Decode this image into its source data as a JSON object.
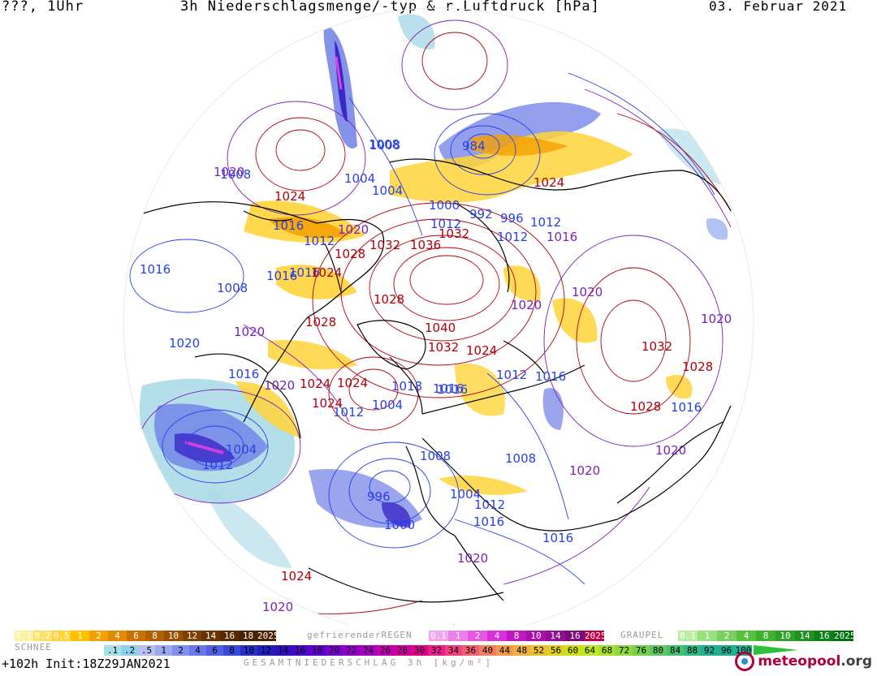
{
  "header": {
    "left": "???, 1Uhr",
    "title": "3h Niederschlagsmenge/-typ & r.Luftdruck [hPa]",
    "date": "03. Februar 2021"
  },
  "map": {
    "colors": {
      "high_isobar": "#b0000c",
      "low_isobar": "#2840e6",
      "mid_isobar": "#7a20b8",
      "coast": "#000000",
      "rain_light": "#a8d8e8",
      "rain_moderate": "#6f7fe6",
      "rain_heavy": "#3a28c8",
      "rain_extreme": "#e040e0",
      "snow_light": "#ffd43a",
      "snow_moderate": "#f5a000"
    },
    "isobar_labels": [
      {
        "text": "1016",
        "kind": "low"
      },
      {
        "text": "1020",
        "kind": "low"
      },
      {
        "text": "1024",
        "kind": "high"
      },
      {
        "text": "1028",
        "kind": "high"
      },
      {
        "text": "1008",
        "kind": "low"
      },
      {
        "text": "984",
        "kind": "low"
      },
      {
        "text": "1020",
        "kind": "mid"
      },
      {
        "text": "1008",
        "kind": "low"
      },
      {
        "text": "1004",
        "kind": "low"
      },
      {
        "text": "1004",
        "kind": "low"
      },
      {
        "text": "1024",
        "kind": "high"
      },
      {
        "text": "1000",
        "kind": "low"
      },
      {
        "text": "1012",
        "kind": "low"
      },
      {
        "text": "992",
        "kind": "low"
      },
      {
        "text": "996",
        "kind": "low"
      },
      {
        "text": "1012",
        "kind": "low"
      },
      {
        "text": "1016",
        "kind": "mid"
      },
      {
        "text": "1016",
        "kind": "low"
      },
      {
        "text": "1012",
        "kind": "low"
      },
      {
        "text": "1020",
        "kind": "mid"
      },
      {
        "text": "1032",
        "kind": "high"
      },
      {
        "text": "1036",
        "kind": "high"
      },
      {
        "text": "1008",
        "kind": "low"
      },
      {
        "text": "1016",
        "kind": "low"
      },
      {
        "text": "1012",
        "kind": "low"
      },
      {
        "text": "1028",
        "kind": "high"
      },
      {
        "text": "1016",
        "kind": "low"
      },
      {
        "text": "1024",
        "kind": "high"
      },
      {
        "text": "1016",
        "kind": "low"
      },
      {
        "text": "1008",
        "kind": "low"
      },
      {
        "text": "1020",
        "kind": "mid"
      },
      {
        "text": "1032",
        "kind": "high"
      },
      {
        "text": "1028",
        "kind": "high"
      },
      {
        "text": "1020",
        "kind": "mid"
      },
      {
        "text": "1020",
        "kind": "mid"
      },
      {
        "text": "1040",
        "kind": "high"
      },
      {
        "text": "1032",
        "kind": "high"
      },
      {
        "text": "1024",
        "kind": "high"
      },
      {
        "text": "1032",
        "kind": "high"
      },
      {
        "text": "1020",
        "kind": "mid"
      },
      {
        "text": "1016",
        "kind": "low"
      },
      {
        "text": "1012",
        "kind": "low"
      },
      {
        "text": "1016",
        "kind": "low"
      },
      {
        "text": "1020",
        "kind": "mid"
      },
      {
        "text": "1024",
        "kind": "high"
      },
      {
        "text": "1024",
        "kind": "high"
      },
      {
        "text": "1018",
        "kind": "low"
      },
      {
        "text": "1016",
        "kind": "low"
      },
      {
        "text": "1024",
        "kind": "high"
      },
      {
        "text": "1028",
        "kind": "high"
      },
      {
        "text": "1004",
        "kind": "low"
      },
      {
        "text": "1012",
        "kind": "low"
      },
      {
        "text": "1028",
        "kind": "high"
      },
      {
        "text": "1016",
        "kind": "low"
      },
      {
        "text": "1004",
        "kind": "low"
      },
      {
        "text": "1012",
        "kind": "low"
      },
      {
        "text": "1008",
        "kind": "low"
      },
      {
        "text": "1008",
        "kind": "low"
      },
      {
        "text": "1020",
        "kind": "mid"
      },
      {
        "text": "996",
        "kind": "low"
      },
      {
        "text": "1004",
        "kind": "low"
      },
      {
        "text": "1012",
        "kind": "low"
      },
      {
        "text": "1000",
        "kind": "low"
      },
      {
        "text": "1016",
        "kind": "low"
      },
      {
        "text": "1016",
        "kind": "low"
      },
      {
        "text": "1020",
        "kind": "mid"
      },
      {
        "text": "1020",
        "kind": "mid"
      },
      {
        "text": "1024",
        "kind": "high"
      },
      {
        "text": "1020",
        "kind": "mid"
      }
    ]
  },
  "legend": {
    "snow_title": "SCHNEE",
    "snow_colors": [
      "#fff0a0",
      "#ffe066",
      "#ffd43a",
      "#ffc000",
      "#f5a000",
      "#e08a00",
      "#c87000",
      "#b06000",
      "#985000",
      "#804000",
      "#6a3400",
      "#582a00",
      "#4a2200"
    ],
    "snow_labels": [
      "0.1",
      "0.2",
      "0.5",
      "1",
      "2",
      "4",
      "6",
      "8",
      "10",
      "12",
      "14",
      "16",
      "18",
      "2025+"
    ],
    "freezing_title": "gefrierenderREGEN",
    "freezing_colors": [
      "#f2a8f0",
      "#ec80ea",
      "#e458e4",
      "#d830d8",
      "#c018c0",
      "#a810a8",
      "#901090",
      "#7a0a7a",
      "#c0004a"
    ],
    "freezing_labels": [
      "0.1",
      "1",
      "2",
      "4",
      "8",
      "10",
      "14",
      "16",
      "2025+"
    ],
    "graupel_title": "GRAUPEL",
    "graupel_colors": [
      "#b8f0a0",
      "#98e080",
      "#78d060",
      "#58c040",
      "#40b030",
      "#30a028",
      "#209020",
      "#108018",
      "#007010"
    ],
    "graupel_labels": [
      "0.1",
      "1",
      "2",
      "4",
      "8",
      "10",
      "14",
      "16",
      "2025+"
    ],
    "rain_colors": [
      "#a8e0e8",
      "#90d0e8",
      "#b8c0f0",
      "#9ca8f0",
      "#8090ec",
      "#6878e8",
      "#5060e0",
      "#3848d8",
      "#2830c8",
      "#2020b8",
      "#3010c0",
      "#4808c8",
      "#6000d0",
      "#7800d0",
      "#9000c8",
      "#a800c0",
      "#c000b0",
      "#d000a0",
      "#e00090",
      "#e8208c",
      "#f04080",
      "#f06070",
      "#f08060",
      "#f09850",
      "#f0b040",
      "#e8c030",
      "#e0d020",
      "#d0e010",
      "#c0e820",
      "#a8e030",
      "#90d840",
      "#78d050",
      "#60c860",
      "#48c070",
      "#30b880",
      "#20b090"
    ],
    "rain_labels": [
      ".1",
      ".2",
      ".5",
      "1",
      "2",
      "4",
      "6",
      "8",
      "10",
      "12",
      "14",
      "16",
      "18",
      "20",
      "22",
      "24",
      "26",
      "28",
      "30",
      "32",
      "34",
      "36",
      "40",
      "44",
      "48",
      "52",
      "56",
      "60",
      "64",
      "68",
      "72",
      "76",
      "80",
      "84",
      "88",
      "92",
      "96",
      "100"
    ],
    "rain_title": "GESAMTNIEDERSCHLAG 3h [kg/m²]"
  },
  "footer": {
    "run": "+102h Init:18Z29JAN2021",
    "brand_1": "meteo",
    "brand_2": "pool",
    "brand_3": ".org"
  }
}
